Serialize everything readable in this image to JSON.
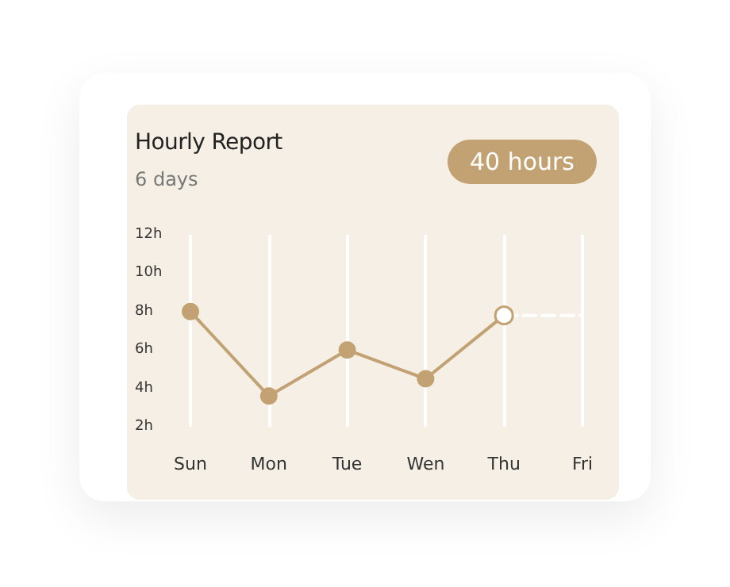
{
  "chart_data": {
    "type": "line",
    "title": "Hourly Report",
    "subtitle": "6 days",
    "annotations": [
      "40 hours"
    ],
    "categories": [
      "Sun",
      "Mon",
      "Tue",
      "Wen",
      "Thu",
      "Fri"
    ],
    "series": [
      {
        "color": "#c2a273",
        "values": [
          8,
          3.6,
          6,
          4.5,
          7.8,
          null
        ],
        "marker": "circle",
        "line_style": "solid"
      },
      {
        "color": "#ffffff",
        "values": [
          null,
          null,
          null,
          null,
          7.8,
          7.8
        ],
        "marker": "none",
        "line_style": "dashed"
      }
    ],
    "ylim": [
      2,
      12
    ],
    "yticks": [
      {
        "value": 2,
        "label": "2h"
      },
      {
        "value": 4,
        "label": "4h"
      },
      {
        "value": 6,
        "label": "6h"
      },
      {
        "value": 8,
        "label": "8h"
      },
      {
        "value": 10,
        "label": "10h"
      },
      {
        "value": 12,
        "label": "12h"
      }
    ],
    "grid": "x"
  }
}
